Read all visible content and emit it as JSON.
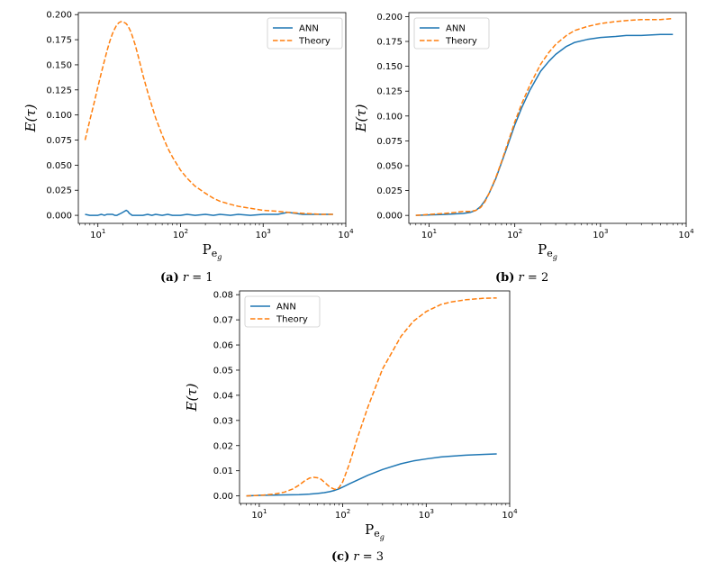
{
  "chart_data": [
    {
      "type": "line",
      "caption": {
        "letter": "(a)",
        "var": "r",
        "eq": " = ",
        "value": "1"
      },
      "ylabel": "E(τ)",
      "xlabel": "Pe_g",
      "xscale": "log",
      "xlim": [
        5.8,
        10000
      ],
      "ylim": [
        -0.008,
        0.202
      ],
      "yticks": [
        0.0,
        0.025,
        0.05,
        0.075,
        0.1,
        0.125,
        0.15,
        0.175,
        0.2
      ],
      "ytick_labels": [
        "0.000",
        "0.025",
        "0.050",
        "0.075",
        "0.100",
        "0.125",
        "0.150",
        "0.175",
        "0.200"
      ],
      "legend": "top-right",
      "series": [
        {
          "name": "ANN",
          "color": "#1f77b4",
          "dash": "solid",
          "x": [
            7,
            8,
            9,
            10,
            11,
            12,
            13,
            14,
            15,
            16,
            17,
            18,
            19,
            20,
            21,
            22,
            23,
            24,
            25,
            26,
            28,
            30,
            32,
            35,
            40,
            45,
            50,
            60,
            70,
            80,
            100,
            120,
            150,
            200,
            250,
            300,
            400,
            500,
            700,
            1000,
            1500,
            2000,
            3000,
            5000,
            7000
          ],
          "y": [
            0.001,
            0.0,
            0.0,
            0.0,
            0.001,
            0.0,
            0.001,
            0.001,
            0.001,
            0.0,
            0.0,
            0.001,
            0.002,
            0.003,
            0.004,
            0.005,
            0.004,
            0.002,
            0.001,
            0.0,
            0.0,
            0.0,
            0.0,
            0.0,
            0.001,
            0.0,
            0.001,
            0.0,
            0.001,
            0.0,
            0.0,
            0.001,
            0.0,
            0.001,
            0.0,
            0.001,
            0.0,
            0.001,
            0.0,
            0.001,
            0.001,
            0.003,
            0.001,
            0.001,
            0.001
          ]
        },
        {
          "name": "Theory",
          "color": "#ff7f0e",
          "dash": "dashed",
          "x": [
            7,
            8,
            9,
            10,
            11,
            12,
            13,
            14,
            15,
            16,
            17,
            18,
            19,
            20,
            21,
            22,
            23,
            24,
            25,
            26,
            28,
            30,
            32,
            35,
            40,
            45,
            50,
            60,
            70,
            80,
            100,
            120,
            150,
            200,
            250,
            300,
            400,
            500,
            700,
            1000,
            1500,
            2000,
            3000,
            5000,
            7000
          ],
          "y": [
            0.075,
            0.095,
            0.112,
            0.128,
            0.142,
            0.154,
            0.165,
            0.174,
            0.181,
            0.186,
            0.19,
            0.192,
            0.193,
            0.193,
            0.192,
            0.191,
            0.189,
            0.186,
            0.183,
            0.179,
            0.171,
            0.162,
            0.153,
            0.14,
            0.123,
            0.109,
            0.097,
            0.08,
            0.067,
            0.058,
            0.045,
            0.037,
            0.029,
            0.022,
            0.017,
            0.014,
            0.011,
            0.009,
            0.007,
            0.005,
            0.004,
            0.003,
            0.002,
            0.001,
            0.001
          ]
        }
      ]
    },
    {
      "type": "line",
      "caption": {
        "letter": "(b)",
        "var": "r",
        "eq": " = ",
        "value": "2"
      },
      "ylabel": "E(τ)",
      "xlabel": "Pe_g",
      "xscale": "log",
      "xlim": [
        5.8,
        10000
      ],
      "ylim": [
        -0.008,
        0.204
      ],
      "yticks": [
        0.0,
        0.025,
        0.05,
        0.075,
        0.1,
        0.125,
        0.15,
        0.175,
        0.2
      ],
      "ytick_labels": [
        "0.000",
        "0.025",
        "0.050",
        "0.075",
        "0.100",
        "0.125",
        "0.150",
        "0.175",
        "0.200"
      ],
      "legend": "top-left",
      "series": [
        {
          "name": "ANN",
          "color": "#1f77b4",
          "dash": "solid",
          "x": [
            7,
            10,
            15,
            20,
            25,
            30,
            35,
            40,
            45,
            50,
            60,
            70,
            80,
            100,
            120,
            150,
            200,
            250,
            300,
            400,
            500,
            700,
            1000,
            1500,
            2000,
            3000,
            5000,
            7000
          ],
          "y": [
            0.0,
            0.0005,
            0.001,
            0.0015,
            0.002,
            0.003,
            0.005,
            0.009,
            0.015,
            0.022,
            0.037,
            0.053,
            0.067,
            0.091,
            0.108,
            0.126,
            0.145,
            0.155,
            0.162,
            0.17,
            0.174,
            0.177,
            0.179,
            0.18,
            0.181,
            0.181,
            0.182,
            0.182
          ]
        },
        {
          "name": "Theory",
          "color": "#ff7f0e",
          "dash": "dashed",
          "x": [
            7,
            10,
            15,
            20,
            25,
            30,
            35,
            40,
            45,
            50,
            60,
            70,
            80,
            100,
            120,
            150,
            200,
            250,
            300,
            400,
            500,
            700,
            1000,
            1500,
            2000,
            3000,
            5000,
            7000
          ],
          "y": [
            0.0,
            0.001,
            0.002,
            0.003,
            0.004,
            0.004,
            0.005,
            0.008,
            0.014,
            0.022,
            0.038,
            0.054,
            0.069,
            0.094,
            0.112,
            0.131,
            0.152,
            0.164,
            0.172,
            0.181,
            0.186,
            0.19,
            0.193,
            0.195,
            0.196,
            0.197,
            0.197,
            0.198
          ]
        }
      ]
    },
    {
      "type": "line",
      "caption": {
        "letter": "(c)",
        "var": "r",
        "eq": " = ",
        "value": "3"
      },
      "ylabel": "E(τ)",
      "xlabel": "Pe_g",
      "xscale": "log",
      "xlim": [
        5.8,
        10000
      ],
      "ylim": [
        -0.003,
        0.0815
      ],
      "yticks": [
        0.0,
        0.01,
        0.02,
        0.03,
        0.04,
        0.05,
        0.06,
        0.07,
        0.08
      ],
      "ytick_labels": [
        "0.00",
        "0.01",
        "0.02",
        "0.03",
        "0.04",
        "0.05",
        "0.06",
        "0.07",
        "0.08"
      ],
      "legend": "top-left",
      "series": [
        {
          "name": "ANN",
          "color": "#1f77b4",
          "dash": "solid",
          "x": [
            7,
            10,
            15,
            20,
            30,
            40,
            50,
            60,
            70,
            80,
            90,
            100,
            120,
            150,
            200,
            300,
            500,
            700,
            1000,
            1500,
            2000,
            3000,
            5000,
            7000
          ],
          "y": [
            0.0,
            0.0002,
            0.0003,
            0.0004,
            0.0005,
            0.0007,
            0.001,
            0.0013,
            0.0017,
            0.0022,
            0.0028,
            0.0035,
            0.0048,
            0.0063,
            0.0082,
            0.0105,
            0.0128,
            0.0139,
            0.0147,
            0.0155,
            0.0158,
            0.0162,
            0.0165,
            0.0167
          ]
        },
        {
          "name": "Theory",
          "color": "#ff7f0e",
          "dash": "dashed",
          "x": [
            7,
            10,
            15,
            20,
            25,
            30,
            35,
            40,
            45,
            50,
            55,
            60,
            70,
            80,
            90,
            100,
            120,
            150,
            200,
            300,
            500,
            700,
            1000,
            1500,
            2000,
            3000,
            5000,
            7000
          ],
          "y": [
            0.0,
            0.0002,
            0.0007,
            0.0015,
            0.0027,
            0.0043,
            0.006,
            0.0071,
            0.0074,
            0.0072,
            0.0066,
            0.0055,
            0.0035,
            0.0026,
            0.0032,
            0.0056,
            0.0127,
            0.0231,
            0.0353,
            0.0505,
            0.0635,
            0.0694,
            0.0733,
            0.0761,
            0.0771,
            0.078,
            0.0786,
            0.0787
          ]
        }
      ]
    }
  ]
}
